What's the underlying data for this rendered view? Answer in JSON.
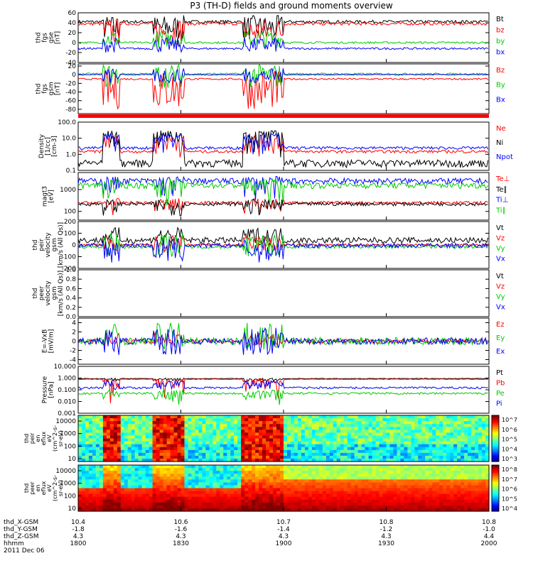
{
  "title": "P3 (TH-D) fields and ground moments overview",
  "date_label": "2011 Dec 06",
  "ephemeris": {
    "rows": [
      {
        "label": "thd_X-GSM",
        "values": [
          "10.4",
          "10.6",
          "10.7",
          "10.8",
          "10.8"
        ],
        "first_override": [
          "10.4",
          "10.6",
          "10.7",
          "10.8",
          "10.8"
        ]
      },
      {
        "label": "thd_Y-GSM",
        "values": [
          "-1.8",
          "-1.6",
          "-1.4",
          "-1.2",
          "-1.0"
        ]
      },
      {
        "label": "thd_Z-GSM",
        "values": [
          "4.3",
          "4.3",
          "4.3",
          "4.3",
          "4.4"
        ]
      },
      {
        "label": "hhmm",
        "values": [
          "1800",
          "1830",
          "1900",
          "1930",
          "2000"
        ]
      }
    ]
  },
  "chart_data": {
    "type": "line",
    "x_start_min": 1080,
    "x_end_min": 1200,
    "x_tick_minutes": [
      1080,
      1110,
      1140,
      1170,
      1200
    ],
    "panels": [
      {
        "id": "fgs-gse",
        "ylabel_lines": [
          "thd",
          "fgs",
          "gse",
          "[nT]"
        ],
        "ylim": [
          -40,
          60
        ],
        "scale": "linear",
        "yticks": [
          "60",
          "40",
          "20",
          "0",
          "-20",
          "-40"
        ],
        "tick_values": [
          60,
          40,
          20,
          0,
          -20,
          -40
        ],
        "series": [
          {
            "name": "Bt",
            "color": "#000000",
            "base": 42,
            "amp": 3,
            "storm": [
              5,
              55
            ]
          },
          {
            "name": "bz",
            "color": "#ff0000",
            "base": 38,
            "amp": 3,
            "storm": [
              -5,
              50
            ]
          },
          {
            "name": "by",
            "color": "#00cc00",
            "base": 0,
            "amp": 2,
            "storm": [
              -10,
              25
            ]
          },
          {
            "name": "bx",
            "color": "#0000ff",
            "base": -12,
            "amp": 2,
            "storm": [
              -20,
              10
            ]
          }
        ]
      },
      {
        "id": "fgs-gsm",
        "ylabel_lines": [
          "thd",
          "fgs",
          "gsm",
          "[nT]"
        ],
        "ylim": [
          -90,
          25
        ],
        "scale": "linear",
        "yticks": [
          "20",
          "0",
          "-20",
          "-40",
          "-60",
          "-80"
        ],
        "tick_values": [
          20,
          0,
          -20,
          -40,
          -60,
          -80
        ],
        "series": [
          {
            "name": "Bz",
            "color": "#ff0000",
            "base": -10,
            "amp": 2,
            "storm": [
              -80,
              10
            ]
          },
          {
            "name": "By",
            "color": "#00cc00",
            "base": 2,
            "amp": 2,
            "storm": [
              -30,
              25
            ]
          },
          {
            "name": "Bx",
            "color": "#0000ff",
            "base": 0,
            "amp": 1,
            "storm": [
              -20,
              15
            ]
          }
        ]
      },
      {
        "id": "density",
        "ylabel_lines": [
          "Density",
          "[1/cc]",
          "[cm-3]"
        ],
        "ylim": [
          0.1,
          100
        ],
        "scale": "log",
        "yticks": [
          "100.0",
          "10.0",
          "1.0",
          "0.1"
        ],
        "tick_values": [
          100,
          10,
          1,
          0.1
        ],
        "series": [
          {
            "name": "Ne",
            "color": "#ff0000",
            "base": 1.5,
            "amp": 0.3,
            "storm": [
              0.5,
              15
            ]
          },
          {
            "name": "Ni",
            "color": "#000000",
            "base": 0.3,
            "amp": 0.15,
            "storm": [
              0.2,
              30
            ]
          },
          {
            "name": "Npot",
            "color": "#0000ff",
            "base": 2.5,
            "amp": 0.5,
            "storm": [
              1,
              20
            ]
          }
        ]
      },
      {
        "id": "temperature",
        "ylabel_lines": [
          "magt3",
          "[eV]"
        ],
        "ylim": [
          40,
          6000
        ],
        "scale": "log",
        "yticks": [
          "1000",
          "100"
        ],
        "tick_values": [
          1000,
          100
        ],
        "series": [
          {
            "name": "Te⊥",
            "color": "#ff0000",
            "base": 250,
            "amp": 40,
            "storm": [
              60,
              400
            ]
          },
          {
            "name": "Te∥",
            "color": "#000000",
            "base": 220,
            "amp": 40,
            "storm": [
              60,
              350
            ]
          },
          {
            "name": "Ti⊥",
            "color": "#0000ff",
            "base": 2500,
            "amp": 800,
            "storm": [
              300,
              4000
            ]
          },
          {
            "name": "Ti∥",
            "color": "#00cc00",
            "base": 1600,
            "amp": 500,
            "storm": [
              200,
              3000
            ]
          }
        ]
      },
      {
        "id": "peir-velocity",
        "ylabel_lines": [
          "thd",
          "peir",
          "velocity",
          "gsm",
          "[km/s (All Qs)]"
        ],
        "ylim": [
          -200,
          200
        ],
        "scale": "linear",
        "yticks": [
          "200",
          "100",
          "0",
          "-100",
          "-200"
        ],
        "tick_values": [
          200,
          100,
          0,
          -100,
          -200
        ],
        "series": [
          {
            "name": "Vt",
            "color": "#000000",
            "base": 40,
            "amp": 25,
            "storm": [
              0,
              150
            ]
          },
          {
            "name": "Vz",
            "color": "#ff0000",
            "base": 0,
            "amp": 10,
            "storm": [
              -60,
              80
            ]
          },
          {
            "name": "Vy",
            "color": "#00cc00",
            "base": -15,
            "amp": 15,
            "storm": [
              -100,
              100
            ]
          },
          {
            "name": "Vx",
            "color": "#0000ff",
            "base": -5,
            "amp": 20,
            "storm": [
              -150,
              60
            ]
          }
        ]
      },
      {
        "id": "peer-velocity",
        "ylabel_lines": [
          "thd",
          "peer",
          "velocity",
          "gsm",
          "[km/s (All Qs)]"
        ],
        "ylim": [
          0,
          1
        ],
        "scale": "linear",
        "yticks": [
          "1.0",
          "0.8",
          "0.6",
          "0.4",
          "0.2",
          "0.0"
        ],
        "tick_values": [
          1,
          0.8,
          0.6,
          0.4,
          0.2,
          0
        ],
        "series": [
          {
            "name": "Vt",
            "color": "#000000",
            "empty": true
          },
          {
            "name": "Vz",
            "color": "#ff0000",
            "empty": true
          },
          {
            "name": "Vy",
            "color": "#00cc00",
            "empty": true
          },
          {
            "name": "Vx",
            "color": "#0000ff",
            "empty": true
          }
        ]
      },
      {
        "id": "efield",
        "ylabel_lines": [
          "E=-VxB",
          "[mV/m]"
        ],
        "ylim": [
          -5,
          5
        ],
        "scale": "linear",
        "yticks": [
          "4",
          "2",
          "0",
          "-2",
          "-4"
        ],
        "tick_values": [
          4,
          2,
          0,
          -2,
          -4
        ],
        "series": [
          {
            "name": "Ez",
            "color": "#ff0000",
            "base": 0,
            "amp": 0.5,
            "storm": [
              -1,
              2
            ]
          },
          {
            "name": "Ey",
            "color": "#00cc00",
            "base": 0,
            "amp": 0.8,
            "storm": [
              -2,
              4
            ]
          },
          {
            "name": "Ex",
            "color": "#0000ff",
            "base": 0,
            "amp": 0.7,
            "storm": [
              -3,
              3
            ]
          }
        ]
      },
      {
        "id": "pressure",
        "ylabel_lines": [
          "Pressure",
          "[nPa]"
        ],
        "ylim": [
          0.001,
          10
        ],
        "scale": "log",
        "yticks": [
          "10.000",
          "1.000",
          "0.100",
          "0.010",
          "0.001"
        ],
        "tick_values": [
          10,
          1,
          0.1,
          0.01,
          0.001
        ],
        "series": [
          {
            "name": "Pt",
            "color": "#000000",
            "base": 0.9,
            "amp": 0.05,
            "storm": [
              0.5,
              1
            ]
          },
          {
            "name": "Pb",
            "color": "#ff0000",
            "base": 0.8,
            "amp": 0.05,
            "storm": [
              0.005,
              0.9
            ]
          },
          {
            "name": "Pe",
            "color": "#00cc00",
            "base": 0.05,
            "amp": 0.01,
            "storm": [
              0.005,
              0.1
            ]
          },
          {
            "name": "Pi",
            "color": "#0000ff",
            "base": 0.15,
            "amp": 0.03,
            "storm": [
              0.1,
              0.6
            ]
          }
        ]
      }
    ],
    "spectra": [
      {
        "id": "peir-spectrum",
        "ylabel_lines": [
          "thd",
          "peir",
          "en",
          "eflux",
          "eV",
          "(cm^2-s-",
          "sr-eV)"
        ],
        "yticks": [
          "10000",
          "1000",
          "100",
          "10"
        ],
        "cbar_ticks": [
          "10^7",
          "10^6",
          "10^5",
          "10^4",
          "10^3"
        ],
        "type": "heatmap"
      },
      {
        "id": "peer-spectrum",
        "ylabel_lines": [
          "thd",
          "peer",
          "en",
          "eflux",
          "eV",
          "(cm^2-s-",
          "sr-eV)"
        ],
        "yticks": [
          "10000",
          "1000",
          "100",
          "10"
        ],
        "cbar_ticks": [
          "10^8",
          "10^7",
          "10^6",
          "10^5",
          "10^4"
        ],
        "type": "heatmap"
      }
    ],
    "storm_intervals_min": [
      [
        1087,
        1092
      ],
      [
        1102,
        1111
      ],
      [
        1128,
        1140
      ]
    ],
    "colors": {
      "red": "#ff0000",
      "green": "#00cc00",
      "blue": "#0000ff",
      "black": "#000000"
    }
  }
}
